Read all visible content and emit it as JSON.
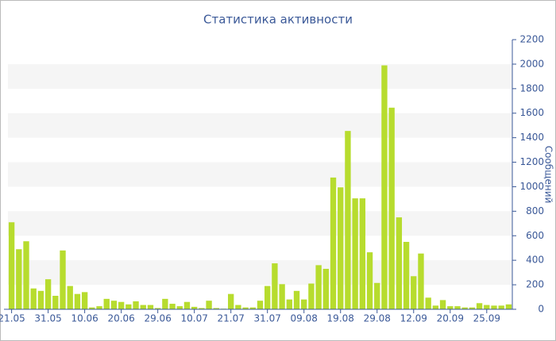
{
  "chart_data": {
    "type": "bar",
    "title": "Статистика активности",
    "y_label": "Сообщений",
    "categories": [
      "21.05",
      null,
      null,
      null,
      null,
      "31.05",
      null,
      null,
      null,
      null,
      "10.06",
      null,
      null,
      null,
      null,
      "20.06",
      null,
      null,
      null,
      null,
      "29.06",
      null,
      null,
      null,
      null,
      "10.07",
      null,
      null,
      null,
      null,
      "21.07",
      null,
      null,
      null,
      null,
      "31.07",
      null,
      null,
      null,
      null,
      "09.08",
      null,
      null,
      null,
      null,
      "19.08",
      null,
      null,
      null,
      null,
      "29.08",
      null,
      null,
      null,
      null,
      "12.09",
      null,
      null,
      null,
      null,
      "20.09",
      null,
      null,
      null,
      null,
      "25.09",
      null,
      null,
      null
    ],
    "values": [
      710,
      490,
      555,
      170,
      150,
      245,
      110,
      480,
      190,
      125,
      140,
      15,
      25,
      85,
      70,
      60,
      40,
      65,
      35,
      35,
      10,
      85,
      45,
      25,
      60,
      20,
      10,
      70,
      10,
      5,
      125,
      35,
      15,
      15,
      70,
      190,
      375,
      205,
      80,
      150,
      80,
      210,
      360,
      330,
      1075,
      995,
      1455,
      905,
      905,
      465,
      215,
      1990,
      1645,
      750,
      550,
      270,
      455,
      95,
      30,
      75,
      25,
      25,
      15,
      15,
      50,
      35,
      30,
      30,
      40
    ],
    "color": "#b7dc2e",
    "ylim": [
      0,
      2200
    ],
    "yticks": [
      0,
      200,
      400,
      600,
      800,
      1000,
      1200,
      1400,
      1600,
      1800,
      2000,
      2200
    ],
    "grid": true
  }
}
